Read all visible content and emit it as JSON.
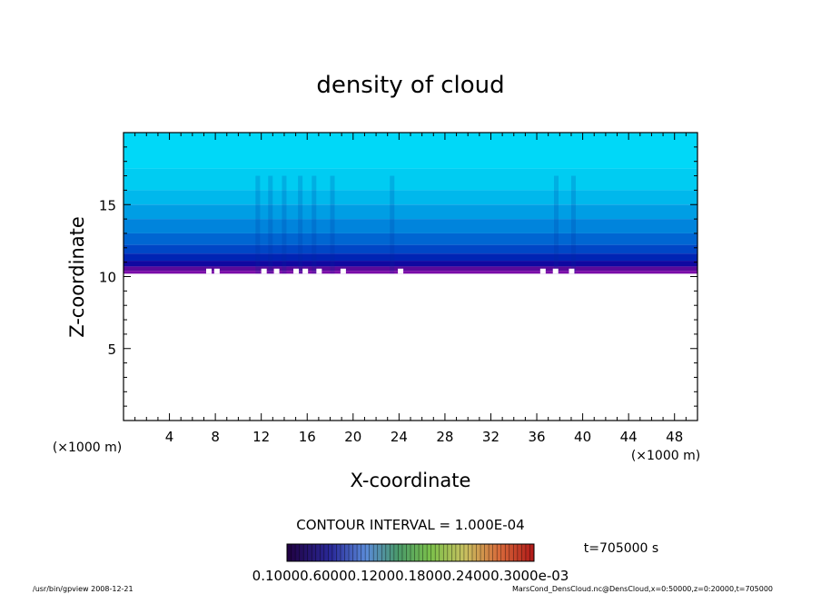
{
  "chart_data": {
    "type": "heatmap",
    "title": "density of cloud",
    "xlabel": "X-coordinate",
    "ylabel": "Z-coordinate",
    "x_unit": "(×1000 m)",
    "y_unit": "(×1000 m)",
    "xlim": [
      0,
      50
    ],
    "ylim": [
      0,
      20
    ],
    "x_ticks": [
      4,
      8,
      12,
      16,
      20,
      24,
      28,
      32,
      36,
      40,
      44,
      48
    ],
    "y_ticks": [
      5,
      10,
      15
    ],
    "field": {
      "cloud_base_z": 10.2,
      "cloud_top_z": 20,
      "levels_top_to_bottom": [
        {
          "z": 20.0,
          "color": "#00d8f8"
        },
        {
          "z": 17.5,
          "color": "#00ccf2"
        },
        {
          "z": 16.0,
          "color": "#00b8ec"
        },
        {
          "z": 15.0,
          "color": "#009ee4"
        },
        {
          "z": 14.0,
          "color": "#0084dc"
        },
        {
          "z": 13.0,
          "color": "#0066d2"
        },
        {
          "z": 12.2,
          "color": "#0046c6"
        },
        {
          "z": 11.6,
          "color": "#0024b4"
        },
        {
          "z": 11.1,
          "color": "#1008a0"
        },
        {
          "z": 10.7,
          "color": "#5a0a9a"
        },
        {
          "z": 10.4,
          "color": "#7a0aa8"
        }
      ]
    },
    "contour_interval": "CONTOUR INTERVAL = 1.000E-04",
    "colorbar_labels": [
      "0.1000E-05",
      "0.6000E-04",
      "0.1200E-03",
      "0.1800E-03",
      "0.2400E-03",
      "0.3000E-03"
    ],
    "colorbar_labels_text": "0.10000.60000.12000.18000.24000.3000e-03",
    "time_label": "t=705000 s"
  },
  "footer": {
    "left": "/usr/bin/gpview   2008-12-21",
    "right": "MarsCond_DensCloud.nc@DensCloud,x=0:50000,z=0:20000,t=705000"
  }
}
